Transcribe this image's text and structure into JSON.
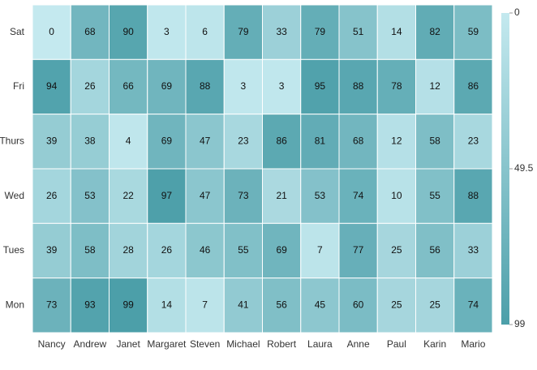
{
  "chart_data": {
    "type": "heatmap",
    "x_categories": [
      "Nancy",
      "Andrew",
      "Janet",
      "Margaret",
      "Steven",
      "Michael",
      "Robert",
      "Laura",
      "Anne",
      "Paul",
      "Karin",
      "Mario"
    ],
    "y_categories": [
      "Sat",
      "Fri",
      "Thurs",
      "Wed",
      "Tues",
      "Mon"
    ],
    "values": [
      [
        0,
        68,
        90,
        3,
        6,
        79,
        33,
        79,
        51,
        14,
        82,
        59
      ],
      [
        94,
        26,
        66,
        69,
        88,
        3,
        3,
        95,
        88,
        78,
        12,
        86
      ],
      [
        39,
        38,
        4,
        69,
        47,
        23,
        86,
        81,
        68,
        12,
        58,
        23
      ],
      [
        26,
        53,
        22,
        97,
        47,
        73,
        21,
        53,
        74,
        10,
        55,
        88
      ],
      [
        39,
        58,
        28,
        26,
        46,
        55,
        69,
        7,
        77,
        25,
        56,
        33
      ],
      [
        73,
        93,
        99,
        14,
        7,
        41,
        56,
        45,
        60,
        25,
        25,
        74
      ]
    ],
    "zlim": [
      0,
      99
    ],
    "colorbar_ticks": [
      0,
      49.5,
      99
    ],
    "colors": [
      "#c4e9ef",
      "#4c9fa9"
    ]
  }
}
